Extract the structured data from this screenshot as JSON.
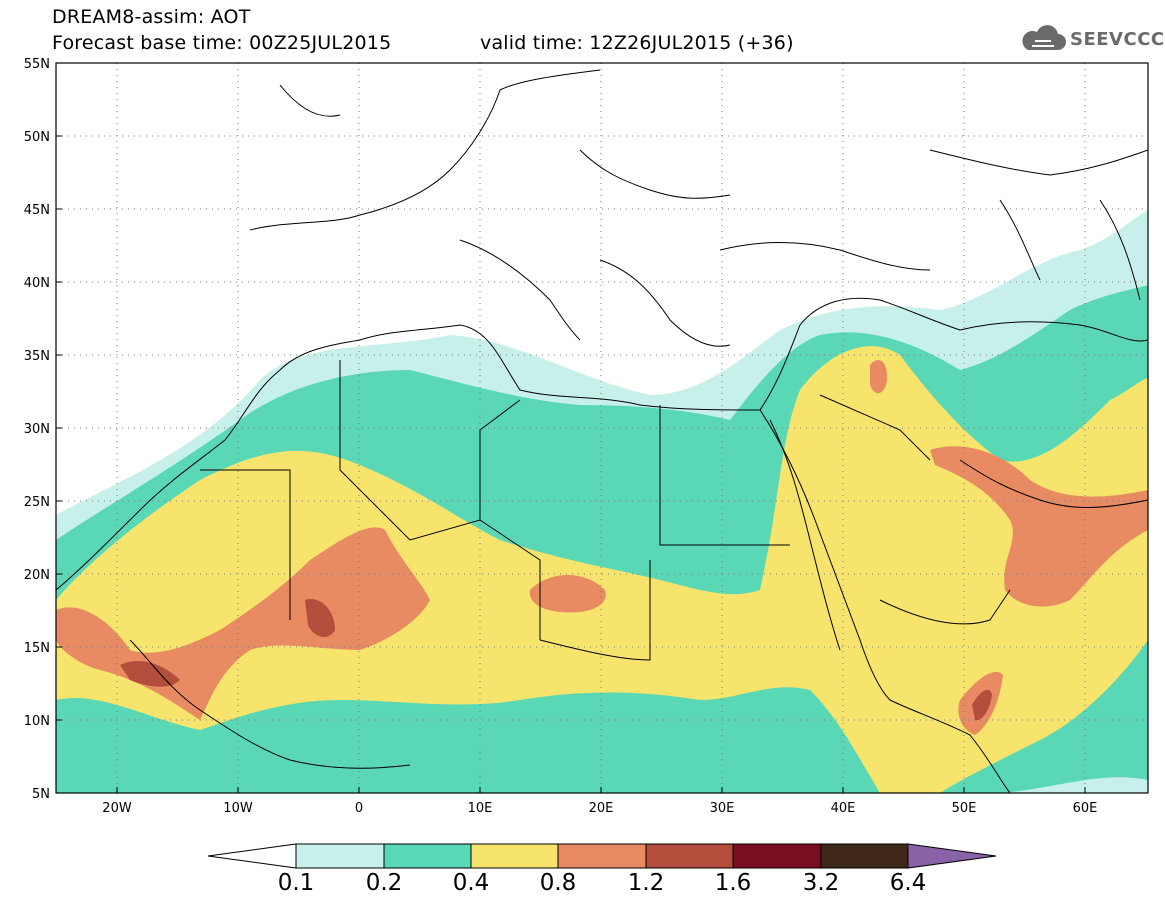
{
  "title": {
    "line1": "DREAM8-assim: AOT",
    "line2": "Forecast base time: 00Z25JUL2015",
    "line3": "valid time: 12Z26JUL2015 (+36)"
  },
  "logo": {
    "text": "SEEVCCC",
    "icon": "cloud-icon"
  },
  "axes": {
    "lat_labels": [
      "55N",
      "50N",
      "45N",
      "40N",
      "35N",
      "30N",
      "25N",
      "20N",
      "15N",
      "10N",
      "5N"
    ],
    "lon_labels": [
      "20W",
      "10W",
      "0",
      "10E",
      "20E",
      "30E",
      "40E",
      "50E",
      "60E"
    ],
    "lat_range": [
      5,
      55
    ],
    "lon_range": [
      -25,
      65
    ]
  },
  "colorbar": {
    "labels": [
      "0.1",
      "0.2",
      "0.4",
      "0.8",
      "1.2",
      "1.6",
      "3.2",
      "6.4"
    ],
    "colors": [
      "#c8f0ea",
      "#5ad8b6",
      "#f7e46c",
      "#e88b63",
      "#b34e3c",
      "#7a0f24",
      "#3f2817",
      "#8a62a8"
    ],
    "under_color": "#ffffff"
  },
  "colors": {
    "border": "#000000",
    "frame": "#000000"
  }
}
